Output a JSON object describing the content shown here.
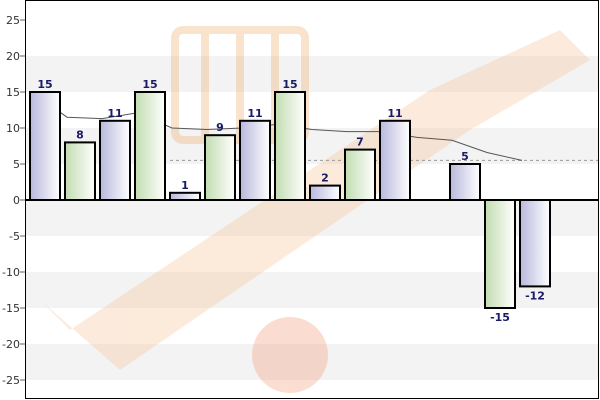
{
  "chart_data": {
    "type": "bar",
    "title": "",
    "xlabel": "",
    "ylabel": "",
    "ylim": [
      -28,
      28
    ],
    "yticks": [
      25,
      20,
      15,
      10,
      5,
      0,
      -5,
      -10,
      -15,
      -20,
      -25
    ],
    "values": [
      15,
      8,
      11,
      15,
      1,
      9,
      11,
      15,
      2,
      7,
      11,
      null,
      5,
      -15,
      -12
    ],
    "data_labels": [
      "15",
      "8",
      "11",
      "15",
      "1",
      "9",
      "11",
      "15",
      "2",
      "7",
      "11",
      "",
      "5",
      "-15",
      "-12"
    ],
    "trend_line": [
      15,
      11.5,
      11.3,
      12.1,
      10,
      9.8,
      10,
      10.5,
      9.8,
      9.5,
      9.5,
      8.7,
      8.3,
      6.6,
      5.5
    ],
    "reference_line": 5.5,
    "grid": true,
    "legend": "none",
    "colors": {
      "bar_fill_blue": "#d8d8ee",
      "bar_fill_green": "#dcebd2",
      "bar_stroke": "#000000",
      "label": "#1a1a66",
      "grid_band": "#f3f3f3",
      "trend": "#555555",
      "reference": "#999999",
      "watermark": "#f6d9b8"
    }
  }
}
